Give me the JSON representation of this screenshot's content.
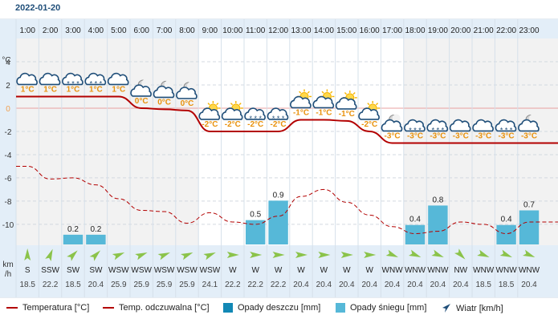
{
  "page": {
    "date": "2022-01-20"
  },
  "chart_data": {
    "type": "line",
    "hours": [
      "1:00",
      "2:00",
      "3:00",
      "4:00",
      "5:00",
      "6:00",
      "7:00",
      "8:00",
      "9:00",
      "10:00",
      "11:00",
      "12:00",
      "13:00",
      "14:00",
      "15:00",
      "16:00",
      "17:00",
      "18:00",
      "19:00",
      "20:00",
      "21:00",
      "22:00",
      "23:00"
    ],
    "y_unit": "°C",
    "y_ticks": [
      4,
      2,
      0,
      -2,
      -4,
      -6,
      -8,
      -10
    ],
    "ylim": [
      -11.8,
      6.0
    ],
    "temperature_labels": [
      "1°C",
      "1°C",
      "1°C",
      "1°C",
      "1°C",
      "0°C",
      "0°C",
      "0°C",
      "-2°C",
      "-2°C",
      "-2°C",
      "-2°C",
      "-1°C",
      "-1°C",
      "-1°C",
      "-2°C",
      "-3°C",
      "-3°C",
      "-3°C",
      "-3°C",
      "-3°C",
      "-3°C",
      "-3°C"
    ],
    "series": [
      {
        "name": "Temperatura [°C]",
        "color": "#b30000",
        "style": "solid",
        "values": [
          1.0,
          1.0,
          1.0,
          1.0,
          1.0,
          0.0,
          -0.1,
          -0.2,
          -2.0,
          -2.0,
          -2.0,
          -2.0,
          -1.0,
          -1.0,
          -1.1,
          -2.0,
          -3.0,
          -3.0,
          -3.0,
          -3.0,
          -3.0,
          -3.0,
          -3.0
        ]
      },
      {
        "name": "Temp. odczuwalna [°C]",
        "color": "#b30000",
        "style": "dashed",
        "values": [
          -5.0,
          -6.1,
          -6.0,
          -6.6,
          -7.8,
          -8.8,
          -8.9,
          -9.9,
          -9.0,
          -9.8,
          -10.0,
          -9.3,
          -7.6,
          -7.0,
          -8.1,
          -9.2,
          -10.2,
          -10.8,
          -10.6,
          -9.8,
          -10.0,
          -10.8,
          -9.8
        ]
      }
    ],
    "precipitation": {
      "rain_color": "#1288b5",
      "snow_color": "#56b8d8",
      "max_value": 1.4,
      "snow": [
        0,
        0,
        0.2,
        0.2,
        0,
        0,
        0,
        0,
        0,
        0,
        0.5,
        0.9,
        0,
        0,
        0,
        0,
        0,
        0.4,
        0.8,
        0,
        0,
        0.4,
        0.7
      ],
      "labels": [
        "",
        "",
        "0.2",
        "0.2",
        "",
        "",
        "",
        "",
        "",
        "",
        "0.5",
        "0.9",
        "",
        "",
        "",
        "",
        "",
        "0.4",
        "0.8",
        "",
        "",
        "0.4",
        "0.7"
      ]
    },
    "weather_icons": [
      "cloud",
      "cloud",
      "cloud-snow",
      "cloud-snow",
      "cloud",
      "partly-cloudy-night",
      "partly-cloudy-night",
      "partly-cloudy-night",
      "partly-sunny",
      "partly-sunny",
      "cloud-snow",
      "cloud-snow",
      "partly-sunny",
      "partly-sunny",
      "partly-sunny",
      "partly-sunny",
      "partly-cloudy-night",
      "cloud-snow",
      "cloud-snow",
      "cloud",
      "cloud",
      "cloud-snow",
      "partly-cloudy-night"
    ],
    "wind": {
      "unit_line1": "km",
      "unit_line2": "/h",
      "arrow_color": "#8bc34a",
      "directions": [
        "S",
        "SSW",
        "SW",
        "SW",
        "WSW",
        "WSW",
        "WSW",
        "WSW",
        "WSW",
        "W",
        "W",
        "W",
        "W",
        "W",
        "W",
        "W",
        "WNW",
        "WNW",
        "WNW",
        "NW",
        "WNW",
        "WNW",
        "WNW"
      ],
      "speeds": [
        "18.5",
        "22.2",
        "18.5",
        "20.4",
        "25.9",
        "25.9",
        "25.9",
        "25.9",
        "24.1",
        "22.2",
        "22.2",
        "22.2",
        "20.4",
        "20.4",
        "20.4",
        "20.4",
        "20.4",
        "20.4",
        "20.4",
        "20.4",
        "18.5",
        "18.5",
        "20.4"
      ]
    }
  },
  "legend": [
    {
      "label": "Temperatura [°C]",
      "kind": "line-solid",
      "color": "#b30000"
    },
    {
      "label": "Temp. odczuwalna [°C]",
      "kind": "line-dashed",
      "color": "#b30000"
    },
    {
      "label": "Opady deszczu [mm]",
      "kind": "box",
      "color": "#1288b5"
    },
    {
      "label": "Opady śniegu [mm]",
      "kind": "box",
      "color": "#56b8d8"
    },
    {
      "label": "Wiatr [km/h]",
      "kind": "wind-arrow",
      "color": "#1f4e79"
    }
  ]
}
